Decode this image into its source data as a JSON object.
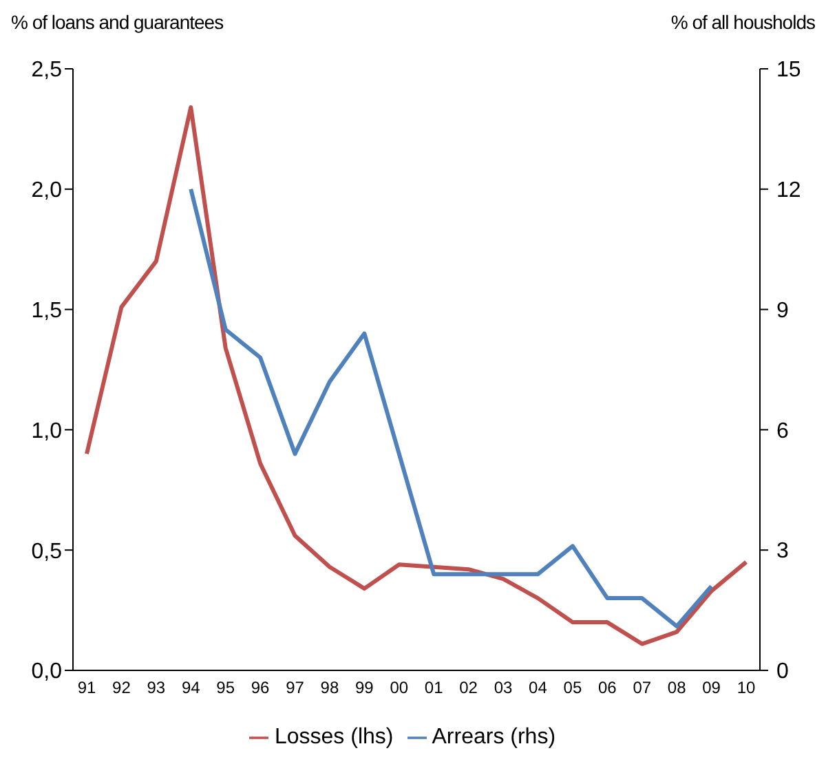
{
  "chart_data": {
    "type": "line",
    "ylabel": "% of loans and guarantees",
    "y2label": "% of all housholds",
    "categories": [
      "91",
      "92",
      "93",
      "94",
      "95",
      "96",
      "97",
      "98",
      "99",
      "00",
      "01",
      "02",
      "03",
      "04",
      "05",
      "06",
      "07",
      "08",
      "09",
      "10"
    ],
    "series": [
      {
        "name": "Losses (lhs)",
        "color": "#c0504d",
        "values": [
          0.9,
          1.51,
          1.7,
          2.34,
          1.34,
          0.86,
          0.56,
          0.43,
          0.34,
          0.44,
          0.43,
          0.42,
          0.38,
          0.3,
          0.2,
          0.2,
          0.11,
          0.16,
          0.33,
          0.45
        ]
      },
      {
        "name": "Arrears (rhs)",
        "color": "#4f81bd",
        "axis": "y2",
        "values": [
          null,
          null,
          null,
          12,
          8.5,
          7.8,
          5.4,
          7.2,
          8.4,
          5.4,
          2.4,
          2.4,
          2.4,
          2.4,
          3.1,
          1.8,
          1.8,
          1.1,
          2.1,
          null
        ]
      }
    ],
    "ylim": [
      0,
      2.5
    ],
    "yticks": [
      {
        "value": 0,
        "label": "0,0"
      },
      {
        "value": 0.5,
        "label": "0,5"
      },
      {
        "value": 1,
        "label": "1,0"
      },
      {
        "value": 1.5,
        "label": "1,5"
      },
      {
        "value": 2,
        "label": "2,0"
      },
      {
        "value": 2.5,
        "label": "2,5"
      }
    ],
    "y2lim": [
      0,
      15
    ],
    "y2ticks": [
      0,
      3,
      6,
      9,
      12,
      15
    ],
    "grid": false,
    "legend": "bottom",
    "marker": "none",
    "line_style": "solid"
  }
}
